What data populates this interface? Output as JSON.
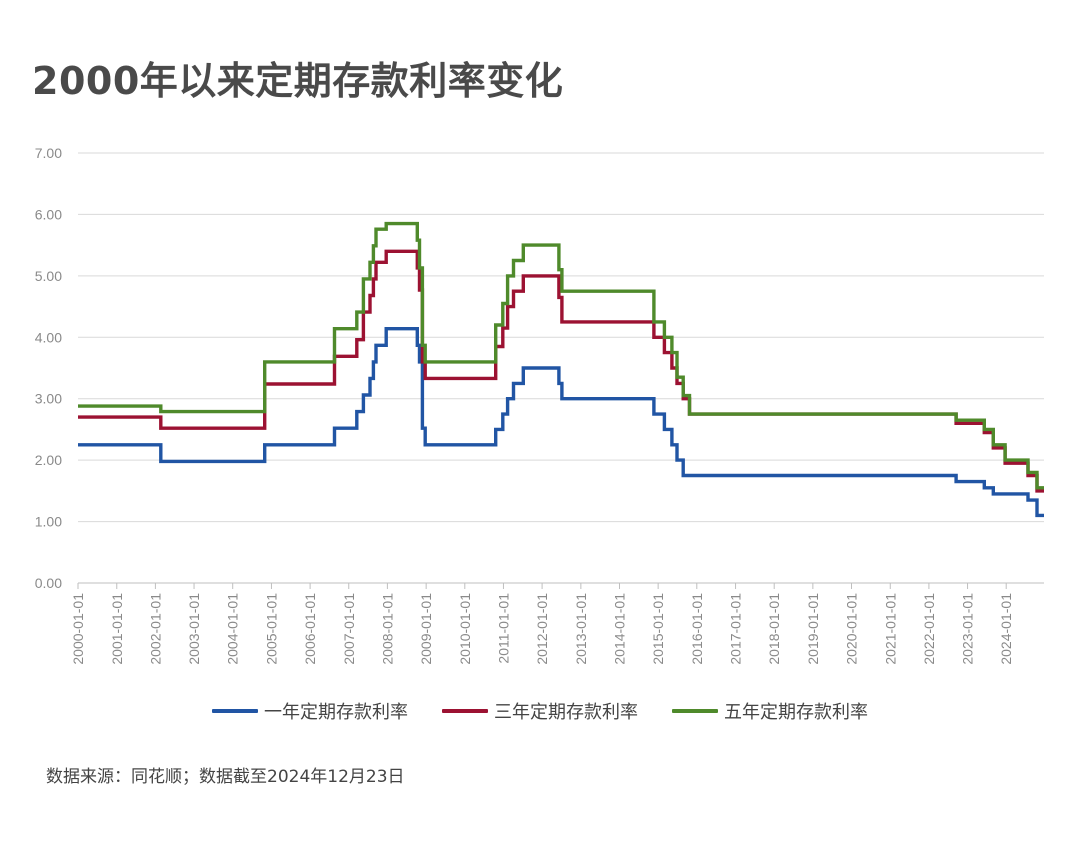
{
  "title": "2000年以来定期存款利率变化",
  "source": "数据来源：同花顺；数据截至2024年12月23日",
  "chart_data": {
    "type": "line",
    "step": true,
    "ylim": [
      0,
      7
    ],
    "yticks": [
      "0.00",
      "1.00",
      "2.00",
      "3.00",
      "4.00",
      "5.00",
      "6.00",
      "7.00"
    ],
    "xlim": [
      "2000-01-01",
      "2024-12-23"
    ],
    "xticks": [
      "2000-01-01",
      "2001-01-01",
      "2002-01-01",
      "2003-01-01",
      "2004-01-01",
      "2005-01-01",
      "2006-01-01",
      "2007-01-01",
      "2008-01-01",
      "2009-01-01",
      "2010-01-01",
      "2011-01-01",
      "2012-01-01",
      "2013-01-01",
      "2014-01-01",
      "2015-01-01",
      "2016-01-01",
      "2017-01-01",
      "2018-01-01",
      "2019-01-01",
      "2020-01-01",
      "2021-01-01",
      "2022-01-01",
      "2023-01-01",
      "2024-01-01"
    ],
    "grid": true,
    "legend_position": "bottom",
    "series": [
      {
        "name": "一年定期存款利率",
        "color": "#2155a4",
        "points": [
          [
            "2000-01-01",
            2.25
          ],
          [
            "2002-02-21",
            1.98
          ],
          [
            "2004-10-29",
            2.25
          ],
          [
            "2006-08-19",
            2.52
          ],
          [
            "2007-03-18",
            2.79
          ],
          [
            "2007-05-19",
            3.06
          ],
          [
            "2007-07-21",
            3.33
          ],
          [
            "2007-08-22",
            3.6
          ],
          [
            "2007-09-15",
            3.87
          ],
          [
            "2007-12-21",
            4.14
          ],
          [
            "2008-10-09",
            3.87
          ],
          [
            "2008-10-30",
            3.6
          ],
          [
            "2008-11-27",
            2.52
          ],
          [
            "2008-12-23",
            2.25
          ],
          [
            "2010-10-20",
            2.5
          ],
          [
            "2010-12-26",
            2.75
          ],
          [
            "2011-02-09",
            3.0
          ],
          [
            "2011-04-06",
            3.25
          ],
          [
            "2011-07-07",
            3.5
          ],
          [
            "2012-06-08",
            3.25
          ],
          [
            "2012-07-06",
            3.0
          ],
          [
            "2014-11-22",
            2.75
          ],
          [
            "2015-03-01",
            2.5
          ],
          [
            "2015-05-11",
            2.25
          ],
          [
            "2015-06-28",
            2.0
          ],
          [
            "2015-08-26",
            1.75
          ],
          [
            "2022-09-15",
            1.65
          ],
          [
            "2023-06-08",
            1.55
          ],
          [
            "2023-09-01",
            1.45
          ],
          [
            "2024-07-25",
            1.35
          ],
          [
            "2024-10-18",
            1.1
          ],
          [
            "2024-12-23",
            1.1
          ]
        ]
      },
      {
        "name": "三年定期存款利率",
        "color": "#9c1232",
        "points": [
          [
            "2000-01-01",
            2.7
          ],
          [
            "2002-02-21",
            2.52
          ],
          [
            "2004-10-29",
            3.24
          ],
          [
            "2006-08-19",
            3.69
          ],
          [
            "2007-03-18",
            3.96
          ],
          [
            "2007-05-19",
            4.41
          ],
          [
            "2007-07-21",
            4.68
          ],
          [
            "2007-08-22",
            4.95
          ],
          [
            "2007-09-15",
            5.22
          ],
          [
            "2007-12-21",
            5.4
          ],
          [
            "2008-10-09",
            5.13
          ],
          [
            "2008-10-30",
            4.77
          ],
          [
            "2008-11-27",
            3.6
          ],
          [
            "2008-12-23",
            3.33
          ],
          [
            "2010-10-20",
            3.85
          ],
          [
            "2010-12-26",
            4.15
          ],
          [
            "2011-02-09",
            4.5
          ],
          [
            "2011-04-06",
            4.75
          ],
          [
            "2011-07-07",
            5.0
          ],
          [
            "2012-06-08",
            4.65
          ],
          [
            "2012-07-06",
            4.25
          ],
          [
            "2014-11-22",
            4.0
          ],
          [
            "2015-03-01",
            3.75
          ],
          [
            "2015-05-11",
            3.5
          ],
          [
            "2015-06-28",
            3.25
          ],
          [
            "2015-08-26",
            3.0
          ],
          [
            "2015-10-24",
            2.75
          ],
          [
            "2022-09-15",
            2.6
          ],
          [
            "2023-06-08",
            2.45
          ],
          [
            "2023-09-01",
            2.2
          ],
          [
            "2023-12-22",
            1.95
          ],
          [
            "2024-07-25",
            1.75
          ],
          [
            "2024-10-18",
            1.5
          ],
          [
            "2024-12-23",
            1.5
          ]
        ]
      },
      {
        "name": "五年定期存款利率",
        "color": "#4f8a2b",
        "points": [
          [
            "2000-01-01",
            2.88
          ],
          [
            "2002-02-21",
            2.79
          ],
          [
            "2004-10-29",
            3.6
          ],
          [
            "2006-08-19",
            4.14
          ],
          [
            "2007-03-18",
            4.41
          ],
          [
            "2007-05-19",
            4.95
          ],
          [
            "2007-07-21",
            5.22
          ],
          [
            "2007-08-22",
            5.49
          ],
          [
            "2007-09-15",
            5.76
          ],
          [
            "2007-12-21",
            5.85
          ],
          [
            "2008-10-09",
            5.58
          ],
          [
            "2008-10-30",
            5.13
          ],
          [
            "2008-11-27",
            3.87
          ],
          [
            "2008-12-23",
            3.6
          ],
          [
            "2010-10-20",
            4.2
          ],
          [
            "2010-12-26",
            4.55
          ],
          [
            "2011-02-09",
            5.0
          ],
          [
            "2011-04-06",
            5.25
          ],
          [
            "2011-07-07",
            5.5
          ],
          [
            "2012-06-08",
            5.1
          ],
          [
            "2012-07-06",
            4.75
          ],
          [
            "2014-11-22",
            4.25
          ],
          [
            "2015-03-01",
            4.0
          ],
          [
            "2015-05-11",
            3.75
          ],
          [
            "2015-06-28",
            3.35
          ],
          [
            "2015-08-26",
            3.05
          ],
          [
            "2015-10-24",
            2.75
          ],
          [
            "2022-09-15",
            2.65
          ],
          [
            "2023-06-08",
            2.5
          ],
          [
            "2023-09-01",
            2.25
          ],
          [
            "2023-12-22",
            2.0
          ],
          [
            "2024-07-25",
            1.8
          ],
          [
            "2024-10-18",
            1.55
          ],
          [
            "2024-12-23",
            1.55
          ]
        ]
      }
    ]
  }
}
